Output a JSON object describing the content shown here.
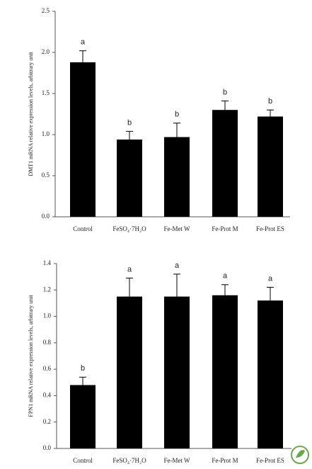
{
  "chart_data": [
    {
      "type": "bar",
      "ylabel": "DMT1 mRNA relative expression levels, arbitrary unit",
      "categories": [
        "Control",
        "FeSO₄·7H₂O",
        "Fe-Met W",
        "Fe-Prot M",
        "Fe-Prot ES"
      ],
      "values": [
        1.88,
        0.94,
        0.97,
        1.3,
        1.22
      ],
      "errors": [
        0.14,
        0.1,
        0.17,
        0.11,
        0.08
      ],
      "annotations": [
        "a",
        "b",
        "b",
        "b",
        "b"
      ],
      "color": "#000000",
      "ylim": [
        0,
        2.5
      ],
      "yticks": [
        {
          "value": 0,
          "label": "0.0"
        },
        {
          "value": 0.5,
          "label": "0.5"
        },
        {
          "value": 1,
          "label": "1.0"
        },
        {
          "value": 1.5,
          "label": "1.5"
        },
        {
          "value": 2,
          "label": "2.0"
        },
        {
          "value": 2.5,
          "label": "2.5"
        }
      ]
    },
    {
      "type": "bar",
      "ylabel": "FPN1 mRNA relative expression levels, arbitrary unit",
      "categories": [
        "Control",
        "FeSO₄·7H₂O",
        "Fe-Met W",
        "Fe-Prot M",
        "Fe-Prot ES"
      ],
      "values": [
        0.48,
        1.15,
        1.15,
        1.16,
        1.12
      ],
      "errors": [
        0.06,
        0.14,
        0.17,
        0.08,
        0.1
      ],
      "annotations": [
        "b",
        "a",
        "a",
        "a",
        "a"
      ],
      "color": "#000000",
      "ylim": [
        0,
        1.4
      ],
      "yticks": [
        {
          "value": 0,
          "label": "0.0"
        },
        {
          "value": 0.2,
          "label": "0.2"
        },
        {
          "value": 0.4,
          "label": "0.4"
        },
        {
          "value": 0.6,
          "label": "0.6"
        },
        {
          "value": 0.8,
          "label": "0.8"
        },
        {
          "value": 1,
          "label": "1.0"
        },
        {
          "value": 1.2,
          "label": "1.2"
        },
        {
          "value": 1.4,
          "label": "1.4"
        }
      ]
    }
  ]
}
